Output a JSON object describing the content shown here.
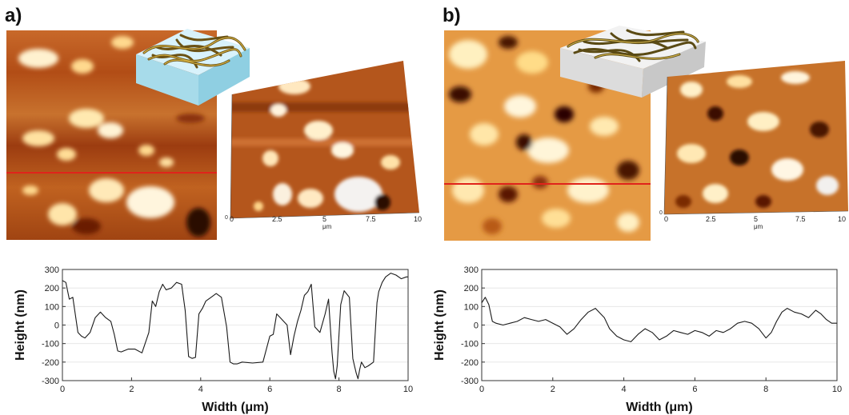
{
  "panels": [
    {
      "label": "a)",
      "axis3d": {
        "ticks": [
          "0",
          "2.5",
          "5",
          "7.5",
          "10"
        ],
        "unit": "μm"
      },
      "chart": {
        "type": "line",
        "xlabel": "Width (μm)",
        "ylabel": "Height (nm)",
        "xlim": [
          0,
          10
        ],
        "ylim": [
          -300,
          300
        ],
        "xticks": [
          "0",
          "2",
          "4",
          "6",
          "8",
          "10"
        ],
        "yticks": [
          "300",
          "200",
          "100",
          "0",
          "-100",
          "-200",
          "-300"
        ]
      }
    },
    {
      "label": "b)",
      "axis3d": {
        "ticks": [
          "0",
          "2.5",
          "5",
          "7.5",
          "10"
        ],
        "unit": "μm"
      },
      "chart": {
        "type": "line",
        "xlabel": "Width (μm)",
        "ylabel": "Height (nm)",
        "xlim": [
          0,
          10
        ],
        "ylim": [
          -300,
          300
        ],
        "xticks": [
          "0",
          "2",
          "4",
          "6",
          "8",
          "10"
        ],
        "yticks": [
          "300",
          "200",
          "100",
          "0",
          "-100",
          "-200",
          "-300"
        ]
      }
    }
  ],
  "chart_data": [
    {
      "type": "line",
      "xlabel": "Width (μm)",
      "ylabel": "Height (nm)",
      "xlim": [
        0,
        10
      ],
      "ylim": [
        -300,
        300
      ],
      "series": [
        {
          "x": [
            0,
            0.1,
            0.2,
            0.3,
            0.45,
            0.55,
            0.65,
            0.8,
            0.95,
            1.1,
            1.25,
            1.4,
            1.5,
            1.6,
            1.7,
            1.9,
            2.1,
            2.3,
            2.5,
            2.6,
            2.7,
            2.8,
            2.9,
            3.0,
            3.15,
            3.3,
            3.45,
            3.55,
            3.65,
            3.75,
            3.85,
            3.95,
            4.05,
            4.15,
            4.3,
            4.45,
            4.6,
            4.75,
            4.85,
            4.95,
            5.05,
            5.2,
            5.5,
            5.8,
            6.0,
            6.1,
            6.2,
            6.3,
            6.5,
            6.6,
            6.7,
            6.8,
            6.9,
            7.0,
            7.1,
            7.2,
            7.3,
            7.45,
            7.6,
            7.7,
            7.75,
            7.8,
            7.85,
            7.9,
            7.95,
            8.05,
            8.15,
            8.3,
            8.4,
            8.45,
            8.5,
            8.55,
            8.6,
            8.65,
            8.75,
            8.85,
            9.0,
            9.1,
            9.15,
            9.25,
            9.35,
            9.5,
            9.65,
            9.8,
            9.95,
            10.0
          ],
          "y": [
            240,
            230,
            140,
            150,
            -40,
            -60,
            -70,
            -40,
            40,
            70,
            40,
            20,
            -50,
            -140,
            -145,
            -130,
            -130,
            -150,
            -40,
            130,
            100,
            180,
            220,
            190,
            200,
            230,
            220,
            80,
            -170,
            -180,
            -175,
            60,
            90,
            130,
            150,
            170,
            150,
            -10,
            -200,
            -210,
            -210,
            -200,
            -205,
            -200,
            -60,
            -50,
            60,
            40,
            0,
            -160,
            -60,
            20,
            80,
            160,
            180,
            220,
            -10,
            -40,
            60,
            140,
            -10,
            -150,
            -250,
            -290,
            -220,
            110,
            185,
            150,
            -180,
            -220,
            -260,
            -290,
            -240,
            -200,
            -230,
            -220,
            -200,
            120,
            180,
            230,
            260,
            280,
            270,
            250,
            260,
            260
          ],
          "name": ""
        }
      ]
    },
    {
      "type": "line",
      "xlabel": "Width (μm)",
      "ylabel": "Height (nm)",
      "xlim": [
        0,
        10
      ],
      "ylim": [
        -300,
        300
      ],
      "series": [
        {
          "x": [
            0,
            0.1,
            0.2,
            0.3,
            0.4,
            0.6,
            0.8,
            1.0,
            1.2,
            1.4,
            1.6,
            1.8,
            2.0,
            2.2,
            2.4,
            2.6,
            2.8,
            3.0,
            3.2,
            3.3,
            3.45,
            3.6,
            3.8,
            4.0,
            4.2,
            4.4,
            4.6,
            4.8,
            5.0,
            5.2,
            5.4,
            5.6,
            5.8,
            6.0,
            6.2,
            6.4,
            6.6,
            6.8,
            7.0,
            7.2,
            7.4,
            7.6,
            7.8,
            8.0,
            8.15,
            8.3,
            8.45,
            8.6,
            8.8,
            9.0,
            9.2,
            9.4,
            9.55,
            9.7,
            9.85,
            10.0
          ],
          "y": [
            120,
            150,
            110,
            20,
            10,
            0,
            10,
            20,
            40,
            30,
            20,
            30,
            10,
            -10,
            -50,
            -20,
            30,
            70,
            90,
            70,
            40,
            -20,
            -60,
            -80,
            -90,
            -50,
            -20,
            -40,
            -80,
            -60,
            -30,
            -40,
            -50,
            -30,
            -40,
            -60,
            -30,
            -40,
            -20,
            10,
            20,
            10,
            -20,
            -70,
            -40,
            20,
            70,
            90,
            70,
            60,
            40,
            80,
            60,
            30,
            10,
            10
          ],
          "name": ""
        }
      ]
    }
  ]
}
